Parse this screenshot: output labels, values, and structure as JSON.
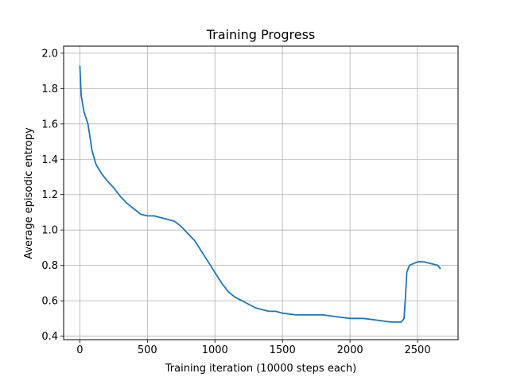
{
  "chart_data": {
    "type": "line",
    "title": "Training Progress",
    "xlabel": "Training iteration (10000 steps each)",
    "ylabel": "Average episodic entropy",
    "xlim": [
      -120,
      2800
    ],
    "ylim": [
      0.38,
      2.04
    ],
    "xticks": [
      0,
      500,
      1000,
      1500,
      2000,
      2500
    ],
    "yticks": [
      0.4,
      0.6,
      0.8,
      1.0,
      1.2,
      1.4,
      1.6,
      1.8,
      2.0
    ],
    "xtick_labels": [
      "0",
      "500",
      "1000",
      "1500",
      "2000",
      "2500"
    ],
    "ytick_labels": [
      "0.4",
      "0.6",
      "0.8",
      "1.0",
      "1.2",
      "1.4",
      "1.6",
      "1.8",
      "2.0"
    ],
    "grid": true,
    "color": "#1f77b4",
    "series": [
      {
        "x": [
          0,
          10,
          30,
          60,
          90,
          120,
          160,
          200,
          250,
          300,
          350,
          400,
          450,
          500,
          550,
          600,
          650,
          700,
          750,
          800,
          850,
          900,
          950,
          1000,
          1050,
          1100,
          1150,
          1200,
          1250,
          1300,
          1350,
          1400,
          1450,
          1500,
          1600,
          1700,
          1800,
          1900,
          2000,
          2100,
          2200,
          2300,
          2380,
          2400,
          2410,
          2420,
          2440,
          2500,
          2550,
          2600,
          2650,
          2670
        ],
        "y": [
          1.93,
          1.76,
          1.67,
          1.6,
          1.45,
          1.37,
          1.32,
          1.28,
          1.24,
          1.19,
          1.15,
          1.12,
          1.09,
          1.08,
          1.08,
          1.07,
          1.06,
          1.05,
          1.02,
          0.98,
          0.94,
          0.88,
          0.82,
          0.76,
          0.7,
          0.65,
          0.62,
          0.6,
          0.58,
          0.56,
          0.55,
          0.54,
          0.54,
          0.53,
          0.52,
          0.52,
          0.52,
          0.51,
          0.5,
          0.5,
          0.49,
          0.48,
          0.48,
          0.5,
          0.62,
          0.76,
          0.8,
          0.82,
          0.82,
          0.81,
          0.8,
          0.78
        ]
      }
    ]
  }
}
